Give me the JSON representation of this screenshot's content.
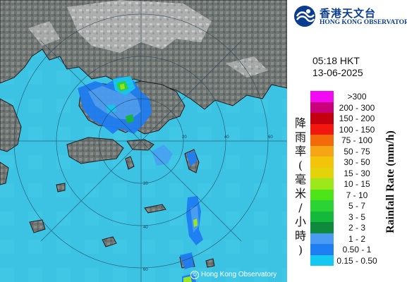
{
  "header": {
    "org_name_zh": "香港天文台",
    "org_name_en": "HONG KONG OBSERVATORY",
    "time": "05:18 HKT",
    "date": "13-06-2025"
  },
  "map": {
    "copyright_symbol": "©",
    "copyright_text": "Hong Kong Observatory",
    "range_ring_labels": [
      "20",
      "40",
      "60",
      "20",
      "40",
      "60"
    ]
  },
  "legend": {
    "title_zh": [
      "降",
      "雨",
      "率",
      "(",
      "毫",
      "米",
      "/",
      "小",
      "時",
      ")"
    ],
    "title_en": "Rainfall Rate (mm/h)",
    "items": [
      {
        "label": ">300",
        "color": "#f20af2"
      },
      {
        "label": "200 - 300",
        "color": "#c8007a"
      },
      {
        "label": "150 - 200",
        "color": "#c40010"
      },
      {
        "label": "100 - 150",
        "color": "#f21810"
      },
      {
        "label": "75 - 100",
        "color": "#f26a0a"
      },
      {
        "label": "50 - 75",
        "color": "#f6a514"
      },
      {
        "label": "30 - 50",
        "color": "#f2c40a"
      },
      {
        "label": "15 - 30",
        "color": "#e4d20a"
      },
      {
        "label": "10 - 15",
        "color": "#9ce81a"
      },
      {
        "label": "7 - 10",
        "color": "#4ee41a"
      },
      {
        "label": "5 - 7",
        "color": "#2bd434"
      },
      {
        "label": "3 - 5",
        "color": "#14b83a"
      },
      {
        "label": "2 - 3",
        "color": "#0f8a3c"
      },
      {
        "label": "1 - 2",
        "color": "#4a9cf2"
      },
      {
        "label": "0.50 - 1",
        "color": "#1e7ef2"
      },
      {
        "label": "0.15 - 0.50",
        "color": "#14c8f2"
      }
    ]
  }
}
